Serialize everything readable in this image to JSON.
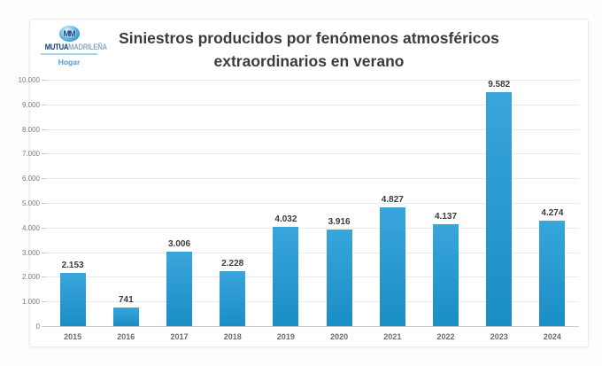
{
  "logo": {
    "monogram": "MM",
    "brand_primary": "MUTUA",
    "brand_secondary": "MADRILEÑA",
    "subbrand": "Hogar"
  },
  "chart_data": {
    "type": "bar",
    "title": "Siniestros producidos por fenómenos atmosféricos extraordinarios en verano",
    "title_lines": [
      "Siniestros producidos por fenómenos atmosféricos",
      "extraordinarios en verano"
    ],
    "categories": [
      "2015",
      "2016",
      "2017",
      "2018",
      "2019",
      "2020",
      "2021",
      "2022",
      "2023",
      "2024"
    ],
    "values": [
      2153,
      741,
      3006,
      2228,
      4032,
      3916,
      4827,
      4137,
      9582,
      4274
    ],
    "value_labels": [
      "2.153",
      "741",
      "3.006",
      "2.228",
      "4.032",
      "3.916",
      "4.827",
      "4.137",
      "9.582",
      "4.274"
    ],
    "xlabel": "",
    "ylabel": "",
    "ylim": [
      0,
      10000
    ],
    "y_tick_step": 1000,
    "y_tick_labels": [
      "0",
      "1.000",
      "2.000",
      "3.000",
      "4.000",
      "5.000",
      "6.000",
      "7.000",
      "8.000",
      "9.000",
      "10.000"
    ],
    "grid": true,
    "legend": false,
    "bar_color_top": "#39a5dc",
    "bar_color_bottom": "#1a8ec5",
    "value_label_color": "#3b3b3b",
    "x_axis_label_color": "#6b6b73",
    "y_axis_label_color": "#7b7b82",
    "title_color": "#3c3c3c"
  }
}
